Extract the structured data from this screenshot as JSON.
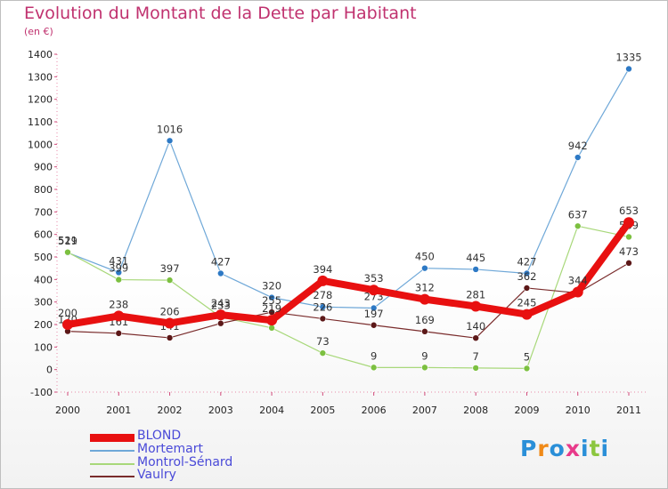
{
  "title": "Evolution du Montant de la Dette par Habitant",
  "unit": "(en €)",
  "logo": "Proxiti",
  "legend": [
    "BLOND",
    "Mortemart",
    "Montrol-Sénard",
    "Vaulry"
  ],
  "chart_data": {
    "type": "line",
    "title": "Evolution du Montant de la Dette par Habitant",
    "ylabel": "(en €)",
    "ylim": [
      -100,
      1400
    ],
    "yticks": [
      -100,
      0,
      100,
      200,
      300,
      400,
      500,
      600,
      700,
      800,
      900,
      1000,
      1100,
      1200,
      1300,
      1400
    ],
    "x": [
      "2000",
      "2001",
      "2002",
      "2003",
      "2004",
      "2005",
      "2006",
      "2007",
      "2008",
      "2009",
      "2010",
      "2011"
    ],
    "grid": false,
    "legend_position": "bottom-left",
    "series": [
      {
        "name": "Mortemart",
        "color": "#6fa8d8",
        "marker": "#2d79c5",
        "width": 1.2,
        "values": [
          519,
          431,
          1016,
          427,
          320,
          278,
          273,
          450,
          445,
          427,
          942,
          1335
        ],
        "labels": [
          "519",
          "431",
          "1016",
          "427",
          "320",
          "278",
          "273",
          "450",
          "445",
          "427",
          "942",
          "1335"
        ]
      },
      {
        "name": "Montrol-Sénard",
        "color": "#a8d87a",
        "marker": "#7cc040",
        "width": 1.2,
        "values": [
          521,
          399,
          397,
          233,
          185,
          73,
          9,
          9,
          7,
          5,
          637,
          589
        ],
        "labels": [
          "521",
          "399",
          "397",
          "233",
          "",
          "73",
          "9",
          "9",
          "7",
          "5",
          "637",
          "589"
        ]
      },
      {
        "name": "Vaulry",
        "color": "#7a2c2c",
        "marker": "#5c1818",
        "width": 1.2,
        "values": [
          170,
          161,
          141,
          205,
          255,
          226,
          197,
          169,
          140,
          362,
          340,
          473
        ],
        "labels": [
          "170",
          "161",
          "141",
          "",
          "255",
          "226",
          "197",
          "169",
          "140",
          "362",
          "",
          "473"
        ]
      },
      {
        "name": "BLOND",
        "color": "#e81010",
        "marker": "#e81010",
        "width": 8,
        "values": [
          200,
          238,
          206,
          243,
          219,
          394,
          353,
          312,
          281,
          245,
          344,
          653
        ],
        "labels": [
          "200",
          "238",
          "206",
          "243",
          "219",
          "394",
          "353",
          "312",
          "281",
          "245",
          "344",
          "653"
        ]
      }
    ]
  }
}
